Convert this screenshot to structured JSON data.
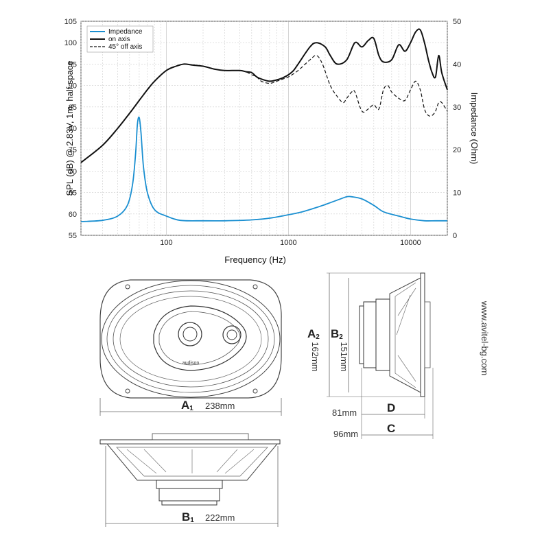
{
  "chart_data": {
    "type": "line",
    "ylabel": "SPL (dB) @ 2.83V, 1m, half space",
    "y2label": "Impedance (Ohm)",
    "xlabel": "Frequency (Hz)",
    "xscale": "log",
    "xlim": [
      20,
      20000
    ],
    "ylim": [
      55,
      105
    ],
    "y2lim": [
      0,
      50
    ],
    "xticks": [
      "100",
      "1000",
      "10000"
    ],
    "yticks": [
      "55",
      "60",
      "65",
      "70",
      "75",
      "80",
      "85",
      "90",
      "95",
      "100",
      "105"
    ],
    "y2ticks": [
      "0",
      "10",
      "20",
      "30",
      "40",
      "50"
    ],
    "grid": true,
    "legend_position": "top-left",
    "series": [
      {
        "name": "Impedance",
        "axis": "right",
        "color": "#1a8fd1",
        "style": "solid",
        "x": [
          20,
          30,
          40,
          48,
          53,
          56,
          58,
          60,
          62,
          65,
          70,
          80,
          100,
          130,
          200,
          300,
          500,
          700,
          1000,
          1300,
          1700,
          2000,
          2500,
          3000,
          3300,
          4000,
          5000,
          6000,
          8000,
          10000,
          13000,
          16000,
          20000
        ],
        "y": [
          3.2,
          3.5,
          4.5,
          7,
          12,
          19,
          26,
          27.5,
          24,
          16,
          10,
          6,
          4.5,
          3.5,
          3.4,
          3.4,
          3.6,
          4,
          4.8,
          5.5,
          6.5,
          7.2,
          8.2,
          9,
          9,
          8.5,
          7,
          5.5,
          4.5,
          3.8,
          3.4,
          3.4,
          3.4
        ]
      },
      {
        "name": "on axis",
        "axis": "left",
        "color": "#111111",
        "style": "solid",
        "x": [
          20,
          30,
          40,
          50,
          60,
          70,
          80,
          100,
          120,
          140,
          160,
          200,
          250,
          300,
          400,
          450,
          500,
          550,
          600,
          700,
          800,
          900,
          1000,
          1100,
          1200,
          1500,
          1700,
          2000,
          2200,
          2500,
          3000,
          3500,
          4000,
          4500,
          5000,
          5500,
          6000,
          7000,
          8000,
          9000,
          10000,
          11000,
          12000,
          13000,
          14000,
          15000,
          16000,
          17000,
          18000,
          20000
        ],
        "y": [
          72,
          76,
          80,
          83.5,
          86.5,
          89,
          91,
          93.5,
          94.5,
          95,
          94.8,
          94.5,
          93.8,
          93.5,
          93.5,
          93.2,
          93,
          92,
          91.5,
          91,
          91.3,
          91.8,
          92.5,
          93.5,
          95,
          99,
          100,
          99,
          97,
          95,
          96,
          100,
          99,
          100.5,
          101,
          97,
          95.5,
          96,
          99.5,
          98,
          100,
          102.5,
          103,
          100,
          96,
          93,
          92,
          97,
          93,
          89
        ]
      },
      {
        "name": "45° off axis",
        "axis": "left",
        "color": "#111111",
        "style": "dashed",
        "x": [
          20,
          30,
          40,
          50,
          60,
          70,
          80,
          100,
          120,
          140,
          160,
          200,
          250,
          300,
          400,
          450,
          500,
          550,
          600,
          700,
          800,
          900,
          1000,
          1200,
          1500,
          1700,
          1900,
          2200,
          2500,
          2800,
          3000,
          3300,
          3500,
          4000,
          4500,
          5000,
          5500,
          6000,
          6500,
          7000,
          8000,
          9000,
          10000,
          11000,
          12000,
          13000,
          14000,
          15000,
          16000,
          17000,
          18000,
          20000
        ],
        "y": [
          72,
          76,
          80,
          83.5,
          86.5,
          89,
          91,
          93.5,
          94.5,
          95,
          94.8,
          94.5,
          93.8,
          93.5,
          93.5,
          93.2,
          92.5,
          92,
          91,
          90.5,
          91,
          91.5,
          92,
          93.5,
          96,
          97,
          95,
          90,
          87.5,
          86,
          87,
          88.5,
          88.5,
          84,
          84.5,
          85.5,
          84.5,
          89,
          90,
          88.5,
          87,
          86.5,
          89,
          91,
          89,
          84.5,
          83,
          83,
          84,
          86,
          86,
          84
        ]
      }
    ]
  },
  "dimensions": {
    "A1": {
      "letter": "A",
      "sub": "1",
      "value": "238mm"
    },
    "B1": {
      "letter": "B",
      "sub": "1",
      "value": "222mm"
    },
    "A2": {
      "letter": "A",
      "sub": "2",
      "value": "162mm"
    },
    "B2": {
      "letter": "B",
      "sub": "2",
      "value": "151mm"
    },
    "C": {
      "letter": "C",
      "value": "96mm"
    },
    "D": {
      "letter": "D",
      "value": "81mm"
    }
  },
  "website": "www.avitel-bg.com",
  "brand_mark": "audison"
}
